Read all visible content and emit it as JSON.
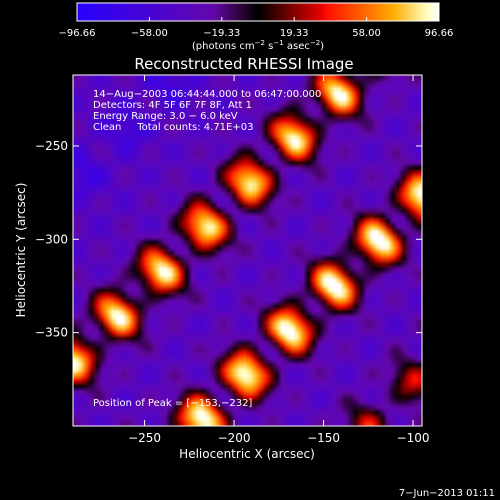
{
  "chart_data": {
    "type": "heatmap",
    "title": "Reconstructed RHESSI Image",
    "xlabel": "Heliocentric X (arcsec)",
    "ylabel": "Heliocentric Y (arcsec)",
    "xlim": [
      -290,
      -95
    ],
    "ylim": [
      -400,
      -212
    ],
    "x_ticks": [
      -250,
      -200,
      -150,
      -100
    ],
    "x_tick_labels": [
      "−250",
      "−200",
      "−150",
      "−100"
    ],
    "y_ticks": [
      -250,
      -300,
      -350
    ],
    "y_tick_labels": [
      "−250",
      "−300",
      "−350"
    ],
    "colorbar": {
      "min": -96.66,
      "max": 96.66,
      "ticks": [
        -96.66,
        -58.0,
        -19.33,
        19.33,
        58.0,
        96.66
      ],
      "tick_labels": [
        "−96.66",
        "−58.00",
        "−19.33",
        "19.33",
        "58.00",
        "96.66"
      ],
      "unit_label": {
        "prefix": "(photons cm",
        "sup1": "−2",
        "mid1": " s",
        "sup2": "−1",
        "mid2": " asec",
        "sup3": "−2",
        "suffix": ")"
      }
    },
    "annotations": [
      "14−Aug−2003 06:44:44.000 to 06:47:00.000",
      "Detectors: 4F 5F 6F 7F 8F, Att 1",
      "Energy Range: 3.0 − 6.0 keV",
      "Clean     Total counts: 4.71E+03"
    ],
    "peak_label": "Position of Peak = [−153,−232]",
    "peak_position": [
      -153,
      -232
    ],
    "pattern_model": {
      "stripe_centers_ax": [
        -1.0,
        -0.27,
        0.5,
        1.22
      ],
      "stripe_amplitudes": [
        -0.2,
        0.88,
        0.96,
        0.45
      ],
      "stripe_width": 0.15,
      "modulation_frequency": 5.5,
      "background": -0.4
    }
  },
  "footer": {
    "timestamp": "7−Jun−2013 01:11"
  }
}
